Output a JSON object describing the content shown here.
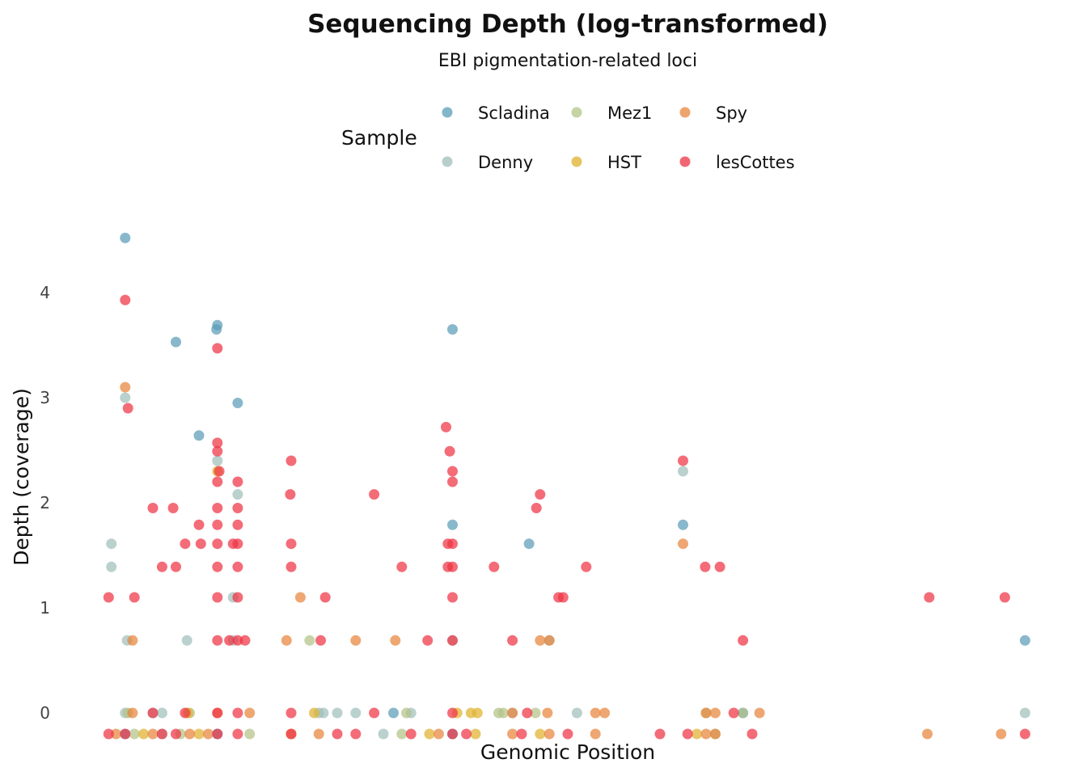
{
  "chart_data": {
    "type": "scatter",
    "title": "Sequencing Depth (log-transformed)",
    "subtitle": "EBI pigmentation-related loci",
    "xlabel": "Genomic Position",
    "ylabel": "Depth (coverage)",
    "ylim": [
      -0.2,
      4.6
    ],
    "xlim": [
      0,
      1
    ],
    "yticks": [
      0,
      1,
      2,
      3,
      4
    ],
    "grid": false,
    "legend": {
      "title": "Sample",
      "position": "top"
    },
    "colors": {
      "Scladina": "#5b9db8",
      "Denny": "#9fbfbb",
      "Mez1": "#b3c486",
      "HST": "#e0b22e",
      "Spy": "#e8853c",
      "lesCottes": "#ee3344"
    },
    "series": [
      {
        "name": "Scladina",
        "points": [
          [
            0.02,
            4.52
          ],
          [
            0.075,
            3.53
          ],
          [
            0.12,
            3.69
          ],
          [
            0.119,
            3.65
          ],
          [
            0.142,
            2.95
          ],
          [
            0.375,
            3.65
          ],
          [
            0.1,
            2.64
          ],
          [
            0.375,
            1.79
          ],
          [
            0.458,
            1.61
          ],
          [
            0.625,
            1.79
          ],
          [
            0.311,
            0
          ],
          [
            0.69,
            0
          ],
          [
            0.996,
            0.69
          ],
          [
            0.02,
            -0.2
          ],
          [
            0.12,
            -0.2
          ],
          [
            0.375,
            -0.2
          ]
        ]
      },
      {
        "name": "Denny",
        "points": [
          [
            0.005,
            1.61
          ],
          [
            0.005,
            1.39
          ],
          [
            0.02,
            3.0
          ],
          [
            0.12,
            2.4
          ],
          [
            0.142,
            2.08
          ],
          [
            0.625,
            2.3
          ],
          [
            0.022,
            0.69
          ],
          [
            0.087,
            0.69
          ],
          [
            0.137,
            1.1
          ],
          [
            0.375,
            0.69
          ],
          [
            0.48,
            0.69
          ],
          [
            0.02,
            0
          ],
          [
            0.05,
            0
          ],
          [
            0.06,
            0
          ],
          [
            0.23,
            0
          ],
          [
            0.235,
            0
          ],
          [
            0.25,
            0
          ],
          [
            0.27,
            0
          ],
          [
            0.33,
            0
          ],
          [
            0.44,
            0
          ],
          [
            0.51,
            0
          ],
          [
            0.996,
            0
          ],
          [
            0.137,
            0.69
          ],
          [
            0.06,
            -0.2
          ],
          [
            0.3,
            -0.2
          ]
        ]
      },
      {
        "name": "Mez1",
        "points": [
          [
            0.023,
            0
          ],
          [
            0.09,
            0
          ],
          [
            0.22,
            0.69
          ],
          [
            0.325,
            0
          ],
          [
            0.425,
            0
          ],
          [
            0.43,
            0
          ],
          [
            0.465,
            0
          ],
          [
            0.65,
            0
          ],
          [
            0.69,
            0
          ],
          [
            0.03,
            -0.2
          ],
          [
            0.08,
            -0.2
          ],
          [
            0.155,
            -0.2
          ],
          [
            0.32,
            -0.2
          ],
          [
            0.66,
            -0.2
          ]
        ]
      },
      {
        "name": "HST",
        "points": [
          [
            0.12,
            2.3
          ],
          [
            0.088,
            0
          ],
          [
            0.225,
            0
          ],
          [
            0.395,
            0
          ],
          [
            0.402,
            0
          ],
          [
            0.38,
            0
          ],
          [
            0.04,
            -0.2
          ],
          [
            0.1,
            -0.2
          ],
          [
            0.35,
            -0.2
          ],
          [
            0.4,
            -0.2
          ],
          [
            0.47,
            -0.2
          ],
          [
            0.64,
            -0.2
          ]
        ]
      },
      {
        "name": "Spy",
        "points": [
          [
            0.02,
            3.1
          ],
          [
            0.625,
            1.61
          ],
          [
            0.028,
            0.69
          ],
          [
            0.195,
            0.69
          ],
          [
            0.27,
            0.69
          ],
          [
            0.313,
            0.69
          ],
          [
            0.47,
            0.69
          ],
          [
            0.48,
            0.69
          ],
          [
            0.21,
            1.1
          ],
          [
            0.028,
            0
          ],
          [
            0.12,
            0
          ],
          [
            0.155,
            0
          ],
          [
            0.44,
            0
          ],
          [
            0.478,
            0
          ],
          [
            0.53,
            0
          ],
          [
            0.54,
            0
          ],
          [
            0.65,
            0
          ],
          [
            0.66,
            0
          ],
          [
            0.708,
            0
          ],
          [
            0.01,
            -0.2
          ],
          [
            0.05,
            -0.2
          ],
          [
            0.09,
            -0.2
          ],
          [
            0.11,
            -0.2
          ],
          [
            0.2,
            -0.2
          ],
          [
            0.23,
            -0.2
          ],
          [
            0.36,
            -0.2
          ],
          [
            0.44,
            -0.2
          ],
          [
            0.48,
            -0.2
          ],
          [
            0.53,
            -0.2
          ],
          [
            0.65,
            -0.2
          ],
          [
            0.66,
            -0.2
          ],
          [
            0.89,
            -0.2
          ],
          [
            0.97,
            -0.2
          ]
        ]
      },
      {
        "name": "lesCottes",
        "points": [
          [
            0.02,
            3.93
          ],
          [
            0.023,
            2.9
          ],
          [
            0.12,
            3.47
          ],
          [
            0.12,
            2.57
          ],
          [
            0.12,
            2.49
          ],
          [
            0.122,
            2.3
          ],
          [
            0.142,
            2.2
          ],
          [
            0.12,
            2.2
          ],
          [
            0.12,
            1.95
          ],
          [
            0.142,
            1.95
          ],
          [
            0.142,
            1.79
          ],
          [
            0.12,
            1.79
          ],
          [
            0.12,
            1.61
          ],
          [
            0.142,
            1.61
          ],
          [
            0.137,
            1.61
          ],
          [
            0.102,
            1.61
          ],
          [
            0.085,
            1.61
          ],
          [
            0.1,
            1.79
          ],
          [
            0.12,
            1.39
          ],
          [
            0.142,
            1.39
          ],
          [
            0.12,
            1.1
          ],
          [
            0.142,
            1.1
          ],
          [
            0.12,
            0.69
          ],
          [
            0.142,
            0.69
          ],
          [
            0.133,
            0.69
          ],
          [
            0.15,
            0.69
          ],
          [
            0.002,
            1.1
          ],
          [
            0.03,
            1.1
          ],
          [
            0.05,
            1.95
          ],
          [
            0.072,
            1.95
          ],
          [
            0.06,
            1.39
          ],
          [
            0.075,
            1.39
          ],
          [
            0.2,
            2.4
          ],
          [
            0.199,
            2.08
          ],
          [
            0.2,
            1.61
          ],
          [
            0.2,
            1.39
          ],
          [
            0.237,
            1.1
          ],
          [
            0.232,
            0.69
          ],
          [
            0.29,
            2.08
          ],
          [
            0.32,
            1.39
          ],
          [
            0.348,
            0.69
          ],
          [
            0.368,
            2.72
          ],
          [
            0.372,
            2.49
          ],
          [
            0.375,
            2.3
          ],
          [
            0.375,
            2.2
          ],
          [
            0.375,
            1.61
          ],
          [
            0.37,
            1.61
          ],
          [
            0.375,
            1.39
          ],
          [
            0.37,
            1.39
          ],
          [
            0.375,
            1.1
          ],
          [
            0.375,
            0.69
          ],
          [
            0.42,
            1.39
          ],
          [
            0.44,
            0.69
          ],
          [
            0.466,
            1.95
          ],
          [
            0.47,
            2.08
          ],
          [
            0.49,
            1.1
          ],
          [
            0.495,
            1.1
          ],
          [
            0.52,
            1.39
          ],
          [
            0.625,
            2.4
          ],
          [
            0.649,
            1.39
          ],
          [
            0.665,
            1.39
          ],
          [
            0.69,
            0.69
          ],
          [
            0.892,
            1.1
          ],
          [
            0.974,
            1.1
          ],
          [
            0.05,
            0
          ],
          [
            0.085,
            0
          ],
          [
            0.12,
            0
          ],
          [
            0.142,
            0
          ],
          [
            0.2,
            0
          ],
          [
            0.29,
            0
          ],
          [
            0.375,
            0
          ],
          [
            0.456,
            0
          ],
          [
            0.68,
            0
          ],
          [
            0.002,
            -0.2
          ],
          [
            0.02,
            -0.2
          ],
          [
            0.06,
            -0.2
          ],
          [
            0.075,
            -0.2
          ],
          [
            0.12,
            -0.2
          ],
          [
            0.142,
            -0.2
          ],
          [
            0.2,
            -0.2
          ],
          [
            0.25,
            -0.2
          ],
          [
            0.27,
            -0.2
          ],
          [
            0.33,
            -0.2
          ],
          [
            0.375,
            -0.2
          ],
          [
            0.39,
            -0.2
          ],
          [
            0.45,
            -0.2
          ],
          [
            0.5,
            -0.2
          ],
          [
            0.6,
            -0.2
          ],
          [
            0.63,
            -0.2
          ],
          [
            0.7,
            -0.2
          ],
          [
            0.996,
            -0.2
          ]
        ]
      }
    ]
  }
}
